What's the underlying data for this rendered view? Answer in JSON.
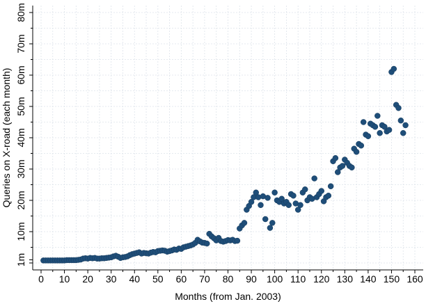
{
  "chart_data": {
    "type": "scatter",
    "title": "",
    "xlabel": "Months (from Jan. 2003)",
    "ylabel": "Queries on X-road (each month)",
    "xlim": [
      0,
      160
    ],
    "ylim": [
      0,
      80
    ],
    "grid": true,
    "legend": "none",
    "marker_color": "#1f4e79",
    "xticks": [
      {
        "value": 0,
        "label": "0"
      },
      {
        "value": 10,
        "label": "10"
      },
      {
        "value": 20,
        "label": "20"
      },
      {
        "value": 30,
        "label": "30"
      },
      {
        "value": 40,
        "label": "40"
      },
      {
        "value": 50,
        "label": "50"
      },
      {
        "value": 60,
        "label": "60"
      },
      {
        "value": 70,
        "label": "70"
      },
      {
        "value": 80,
        "label": "80"
      },
      {
        "value": 90,
        "label": "90"
      },
      {
        "value": 100,
        "label": "100"
      },
      {
        "value": 110,
        "label": "110"
      },
      {
        "value": 120,
        "label": "120"
      },
      {
        "value": 130,
        "label": "130"
      },
      {
        "value": 140,
        "label": "140"
      },
      {
        "value": 150,
        "label": "150"
      },
      {
        "value": 160,
        "label": "160"
      }
    ],
    "yticks": [
      {
        "value": 1,
        "label": "1m"
      },
      {
        "value": 10,
        "label": "10m"
      },
      {
        "value": 20,
        "label": "20m"
      },
      {
        "value": 30,
        "label": "30m"
      },
      {
        "value": 40,
        "label": "40m"
      },
      {
        "value": 50,
        "label": "50m"
      },
      {
        "value": 60,
        "label": "60m"
      },
      {
        "value": 70,
        "label": "70m"
      },
      {
        "value": 80,
        "label": "80m"
      }
    ],
    "x": [
      1,
      2,
      3,
      4,
      5,
      6,
      7,
      8,
      9,
      10,
      11,
      12,
      13,
      14,
      15,
      16,
      17,
      18,
      19,
      20,
      21,
      22,
      23,
      24,
      25,
      26,
      27,
      28,
      29,
      30,
      31,
      32,
      33,
      34,
      35,
      36,
      37,
      38,
      39,
      40,
      41,
      42,
      43,
      44,
      45,
      46,
      47,
      48,
      49,
      50,
      51,
      52,
      53,
      54,
      55,
      56,
      57,
      58,
      59,
      60,
      61,
      62,
      63,
      64,
      65,
      66,
      67,
      68,
      69,
      70,
      71,
      72,
      73,
      74,
      75,
      76,
      77,
      78,
      79,
      80,
      81,
      82,
      83,
      84,
      85,
      86,
      87,
      88,
      89,
      90,
      91,
      92,
      93,
      94,
      95,
      96,
      97,
      98,
      99,
      100,
      101,
      102,
      103,
      104,
      105,
      106,
      107,
      108,
      109,
      110,
      111,
      112,
      113,
      114,
      115,
      116,
      117,
      118,
      119,
      120,
      121,
      122,
      123,
      124,
      125,
      126,
      127,
      128,
      129,
      130,
      131,
      132,
      133,
      134,
      135,
      136,
      137,
      138,
      139,
      140,
      141,
      142,
      143,
      144,
      145,
      146,
      147,
      148,
      149,
      150,
      151,
      152,
      153,
      154,
      155,
      156
    ],
    "y": [
      0.8,
      0.8,
      0.8,
      0.8,
      0.8,
      0.8,
      0.8,
      0.8,
      0.8,
      0.8,
      0.9,
      0.9,
      0.9,
      0.9,
      0.9,
      1.0,
      1.1,
      1.4,
      1.5,
      1.4,
      1.6,
      1.5,
      1.6,
      1.4,
      1.4,
      1.5,
      1.5,
      1.6,
      1.7,
      1.8,
      2.1,
      2.3,
      2.0,
      1.6,
      1.8,
      1.9,
      2.1,
      2.5,
      2.8,
      3.0,
      3.2,
      3.4,
      3.0,
      3.2,
      3.1,
      3.0,
      3.3,
      3.5,
      3.4,
      3.8,
      3.9,
      4.0,
      3.9,
      3.6,
      3.8,
      4.0,
      4.3,
      4.2,
      4.6,
      4.5,
      5.0,
      5.2,
      5.4,
      5.6,
      5.9,
      6.4,
      7.4,
      6.9,
      6.5,
      6.4,
      6.2,
      9.3,
      8.5,
      7.9,
      7.2,
      8.0,
      7.0,
      6.8,
      7.0,
      7.3,
      7.2,
      7.4,
      7.0,
      7.1,
      11.0,
      12.0,
      12.8,
      17.0,
      18.2,
      19.5,
      21.0,
      22.5,
      21.0,
      18.5,
      21.3,
      14.0,
      20.8,
      11.2,
      12.8,
      22.5,
      20.0,
      19.5,
      20.5,
      19.0,
      19.5,
      18.5,
      22.0,
      21.5,
      19.0,
      17.0,
      18.5,
      22.5,
      23.5,
      20.0,
      21.0,
      20.5,
      27.0,
      21.0,
      22.0,
      23.0,
      19.7,
      21.0,
      21.5,
      24.5,
      32.5,
      33.5,
      29.0,
      30.5,
      31.0,
      33.0,
      32.0,
      31.0,
      30.5,
      36.5,
      35.5,
      38.0,
      37.5,
      45.0,
      41.0,
      40.5,
      44.5,
      44.0,
      43.5,
      47.0,
      41.5,
      44.0,
      43.5,
      42.0,
      42.5,
      61.0,
      62.0,
      50.5,
      49.5,
      45.5,
      41.5,
      44.0
    ]
  }
}
